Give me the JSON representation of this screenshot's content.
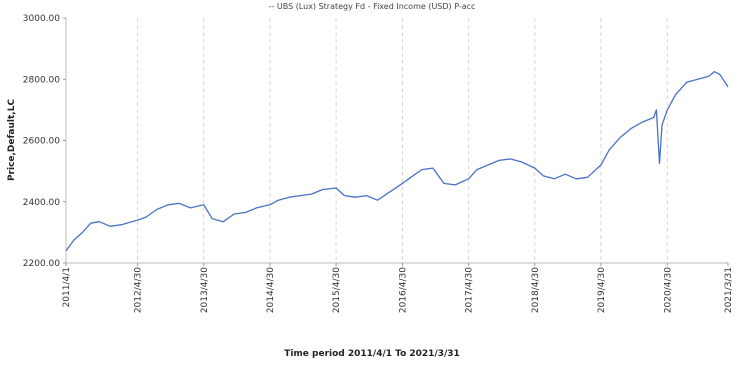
{
  "chart_data": {
    "type": "line",
    "title": "-- UBS (Lux) Strategy Fd - Fixed Income (USD) P-acc",
    "xlabel": "Time period 2011/4/1 To 2021/3/31",
    "ylabel": "Price,Default,LC",
    "ylim": [
      2200,
      3000
    ],
    "yticks": [
      "2200.00",
      "2400.00",
      "2600.00",
      "2800.00",
      "3000.00"
    ],
    "xlim": [
      "2011-04-01",
      "2021-03-31"
    ],
    "xticks": [
      "2011/4/1",
      "2012/4/30",
      "2013/4/30",
      "2014/4/30",
      "2015/4/30",
      "2016/4/30",
      "2017/4/30",
      "2018/4/30",
      "2019/4/30",
      "2020/4/30",
      "2021/3/31"
    ],
    "grid": "vertical dashed",
    "line_color": "#4a72c4",
    "series": [
      {
        "name": "UBS (Lux) Strategy Fd - Fixed Income (USD) P-acc",
        "x": [
          "2011-04-01",
          "2011-05-15",
          "2011-07-01",
          "2011-08-15",
          "2011-10-01",
          "2011-12-01",
          "2012-02-01",
          "2012-04-30",
          "2012-06-15",
          "2012-08-15",
          "2012-10-15",
          "2012-12-15",
          "2013-02-15",
          "2013-04-30",
          "2013-06-15",
          "2013-08-15",
          "2013-10-15",
          "2013-12-15",
          "2014-02-15",
          "2014-04-30",
          "2014-06-15",
          "2014-08-15",
          "2014-10-15",
          "2014-12-15",
          "2015-02-15",
          "2015-04-30",
          "2015-06-15",
          "2015-08-15",
          "2015-10-15",
          "2015-12-15",
          "2016-02-15",
          "2016-04-30",
          "2016-06-15",
          "2016-08-15",
          "2016-10-15",
          "2016-12-15",
          "2017-02-15",
          "2017-04-30",
          "2017-06-15",
          "2017-08-15",
          "2017-10-15",
          "2017-12-15",
          "2018-02-15",
          "2018-04-30",
          "2018-06-15",
          "2018-08-15",
          "2018-10-15",
          "2018-12-15",
          "2019-02-15",
          "2019-04-30",
          "2019-06-15",
          "2019-08-15",
          "2019-10-15",
          "2019-12-15",
          "2020-02-15",
          "2020-03-01",
          "2020-03-18",
          "2020-04-01",
          "2020-04-30",
          "2020-06-15",
          "2020-08-15",
          "2020-10-15",
          "2020-12-15",
          "2021-01-15",
          "2021-02-15",
          "2021-03-31"
        ],
        "y": [
          2240,
          2275,
          2300,
          2330,
          2335,
          2320,
          2325,
          2340,
          2350,
          2375,
          2390,
          2395,
          2380,
          2390,
          2345,
          2335,
          2360,
          2365,
          2380,
          2390,
          2405,
          2415,
          2420,
          2425,
          2440,
          2445,
          2420,
          2415,
          2420,
          2405,
          2430,
          2460,
          2480,
          2505,
          2510,
          2460,
          2455,
          2475,
          2505,
          2520,
          2535,
          2540,
          2530,
          2510,
          2485,
          2475,
          2490,
          2475,
          2480,
          2520,
          2570,
          2610,
          2640,
          2660,
          2675,
          2700,
          2525,
          2650,
          2700,
          2750,
          2790,
          2800,
          2810,
          2825,
          2815,
          2775
        ]
      }
    ]
  }
}
